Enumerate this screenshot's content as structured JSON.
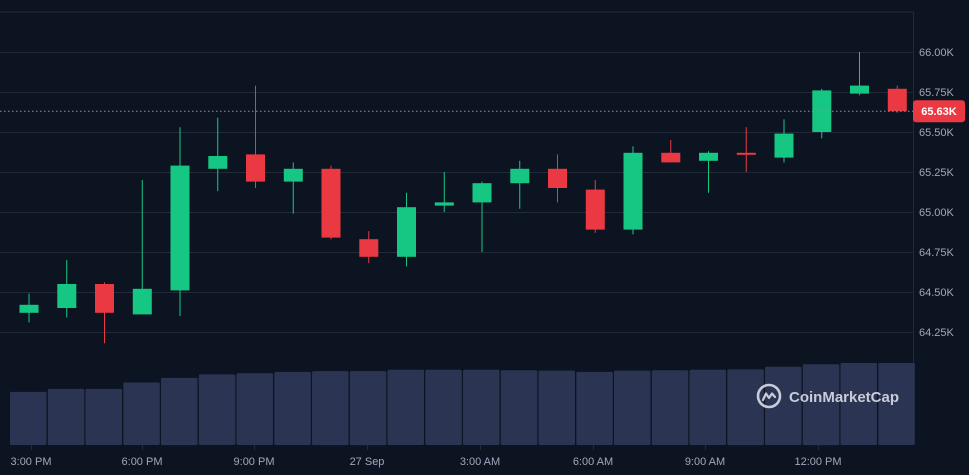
{
  "chart_data": {
    "type": "candlestick",
    "x_labels": [
      "3:00 PM",
      "6:00 PM",
      "9:00 PM",
      "27 Sep",
      "3:00 AM",
      "6:00 AM",
      "9:00 AM",
      "12:00 PM"
    ],
    "y_ticks": [
      "64.25K",
      "64.50K",
      "64.75K",
      "65.00K",
      "65.25K",
      "65.50K",
      "65.75K",
      "66.00K"
    ],
    "y_tick_values": [
      64250,
      64500,
      64750,
      65000,
      65250,
      65500,
      65750,
      66000
    ],
    "ylim": [
      64000,
      66250
    ],
    "current_price": 65630,
    "current_price_label": "65.63K",
    "grid": true,
    "colors": {
      "up": "#16c784",
      "down": "#ea3943",
      "volume": "#2b3452",
      "background": "#0d1421",
      "grid": "#222a3a",
      "label": "#a1a7bb"
    },
    "candles": [
      {
        "o": 64370,
        "h": 64490,
        "l": 64310,
        "c": 64420
      },
      {
        "o": 64400,
        "h": 64700,
        "l": 64340,
        "c": 64550
      },
      {
        "o": 64550,
        "h": 64560,
        "l": 64180,
        "c": 64370
      },
      {
        "o": 64360,
        "h": 65200,
        "l": 64360,
        "c": 64520
      },
      {
        "o": 64510,
        "h": 65530,
        "l": 64350,
        "c": 65290
      },
      {
        "o": 65270,
        "h": 65590,
        "l": 65130,
        "c": 65350
      },
      {
        "o": 65360,
        "h": 65790,
        "l": 65150,
        "c": 65190
      },
      {
        "o": 65190,
        "h": 65310,
        "l": 64990,
        "c": 65270
      },
      {
        "o": 65270,
        "h": 65290,
        "l": 64830,
        "c": 64840
      },
      {
        "o": 64830,
        "h": 64880,
        "l": 64680,
        "c": 64720
      },
      {
        "o": 64720,
        "h": 65120,
        "l": 64660,
        "c": 65030
      },
      {
        "o": 65040,
        "h": 65250,
        "l": 65000,
        "c": 65060
      },
      {
        "o": 65060,
        "h": 65190,
        "l": 64750,
        "c": 65180
      },
      {
        "o": 65180,
        "h": 65320,
        "l": 65020,
        "c": 65270
      },
      {
        "o": 65270,
        "h": 65360,
        "l": 65060,
        "c": 65150
      },
      {
        "o": 65140,
        "h": 65200,
        "l": 64870,
        "c": 64890
      },
      {
        "o": 64890,
        "h": 65410,
        "l": 64860,
        "c": 65370
      },
      {
        "o": 65370,
        "h": 65450,
        "l": 65310,
        "c": 65310
      },
      {
        "o": 65320,
        "h": 65380,
        "l": 65120,
        "c": 65370
      },
      {
        "o": 65370,
        "h": 65530,
        "l": 65250,
        "c": 65360
      },
      {
        "o": 65340,
        "h": 65580,
        "l": 65310,
        "c": 65490
      },
      {
        "o": 65500,
        "h": 65770,
        "l": 65460,
        "c": 65760
      },
      {
        "o": 65740,
        "h": 66000,
        "l": 65730,
        "c": 65790
      },
      {
        "o": 65770,
        "h": 65790,
        "l": 65620,
        "c": 65630
      }
    ],
    "volumes": [
      0.625,
      0.66,
      0.66,
      0.735,
      0.79,
      0.83,
      0.845,
      0.86,
      0.87,
      0.87,
      0.885,
      0.885,
      0.885,
      0.88,
      0.875,
      0.86,
      0.875,
      0.88,
      0.885,
      0.89,
      0.92,
      0.95,
      0.965,
      0.965
    ]
  },
  "watermark": {
    "text": "CoinMarketCap",
    "icon": "coinmarketcap-logo-icon"
  }
}
